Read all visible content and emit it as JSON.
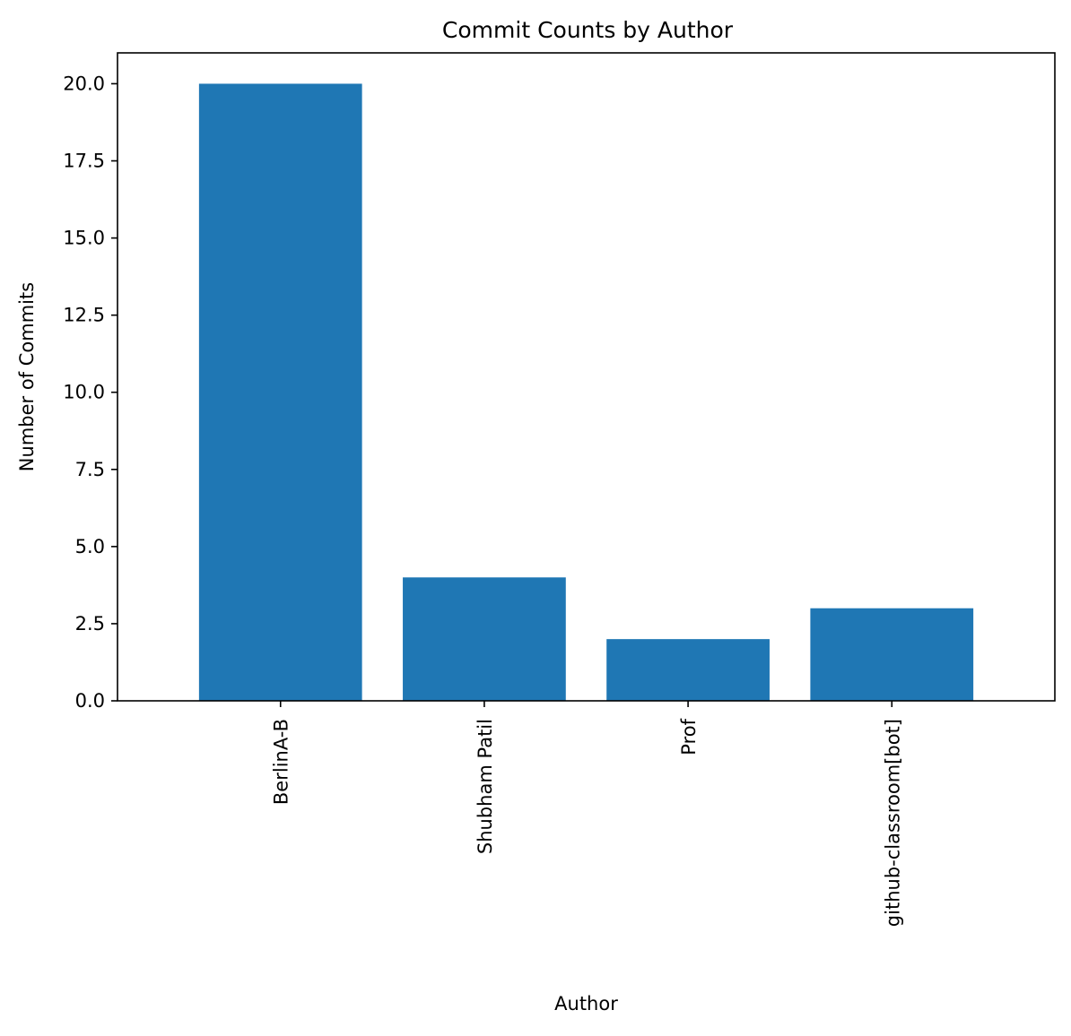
{
  "chart_data": {
    "type": "bar",
    "title": "Commit Counts by Author",
    "xlabel": "Author",
    "ylabel": "Number of Commits",
    "categories": [
      "BerlinA-B",
      "Shubham Patil",
      "Prof",
      "github-classroom[bot]"
    ],
    "values": [
      20,
      4,
      2,
      3
    ],
    "ylim": [
      0,
      21
    ],
    "yticks": [
      0.0,
      2.5,
      5.0,
      7.5,
      10.0,
      12.5,
      15.0,
      17.5,
      20.0
    ],
    "ytick_labels": [
      "0.0",
      "2.5",
      "5.0",
      "7.5",
      "10.0",
      "12.5",
      "15.0",
      "17.5",
      "20.0"
    ],
    "bar_color": "#1f77b4",
    "grid": false,
    "legend": "none",
    "xtick_rotation": "vertical"
  }
}
